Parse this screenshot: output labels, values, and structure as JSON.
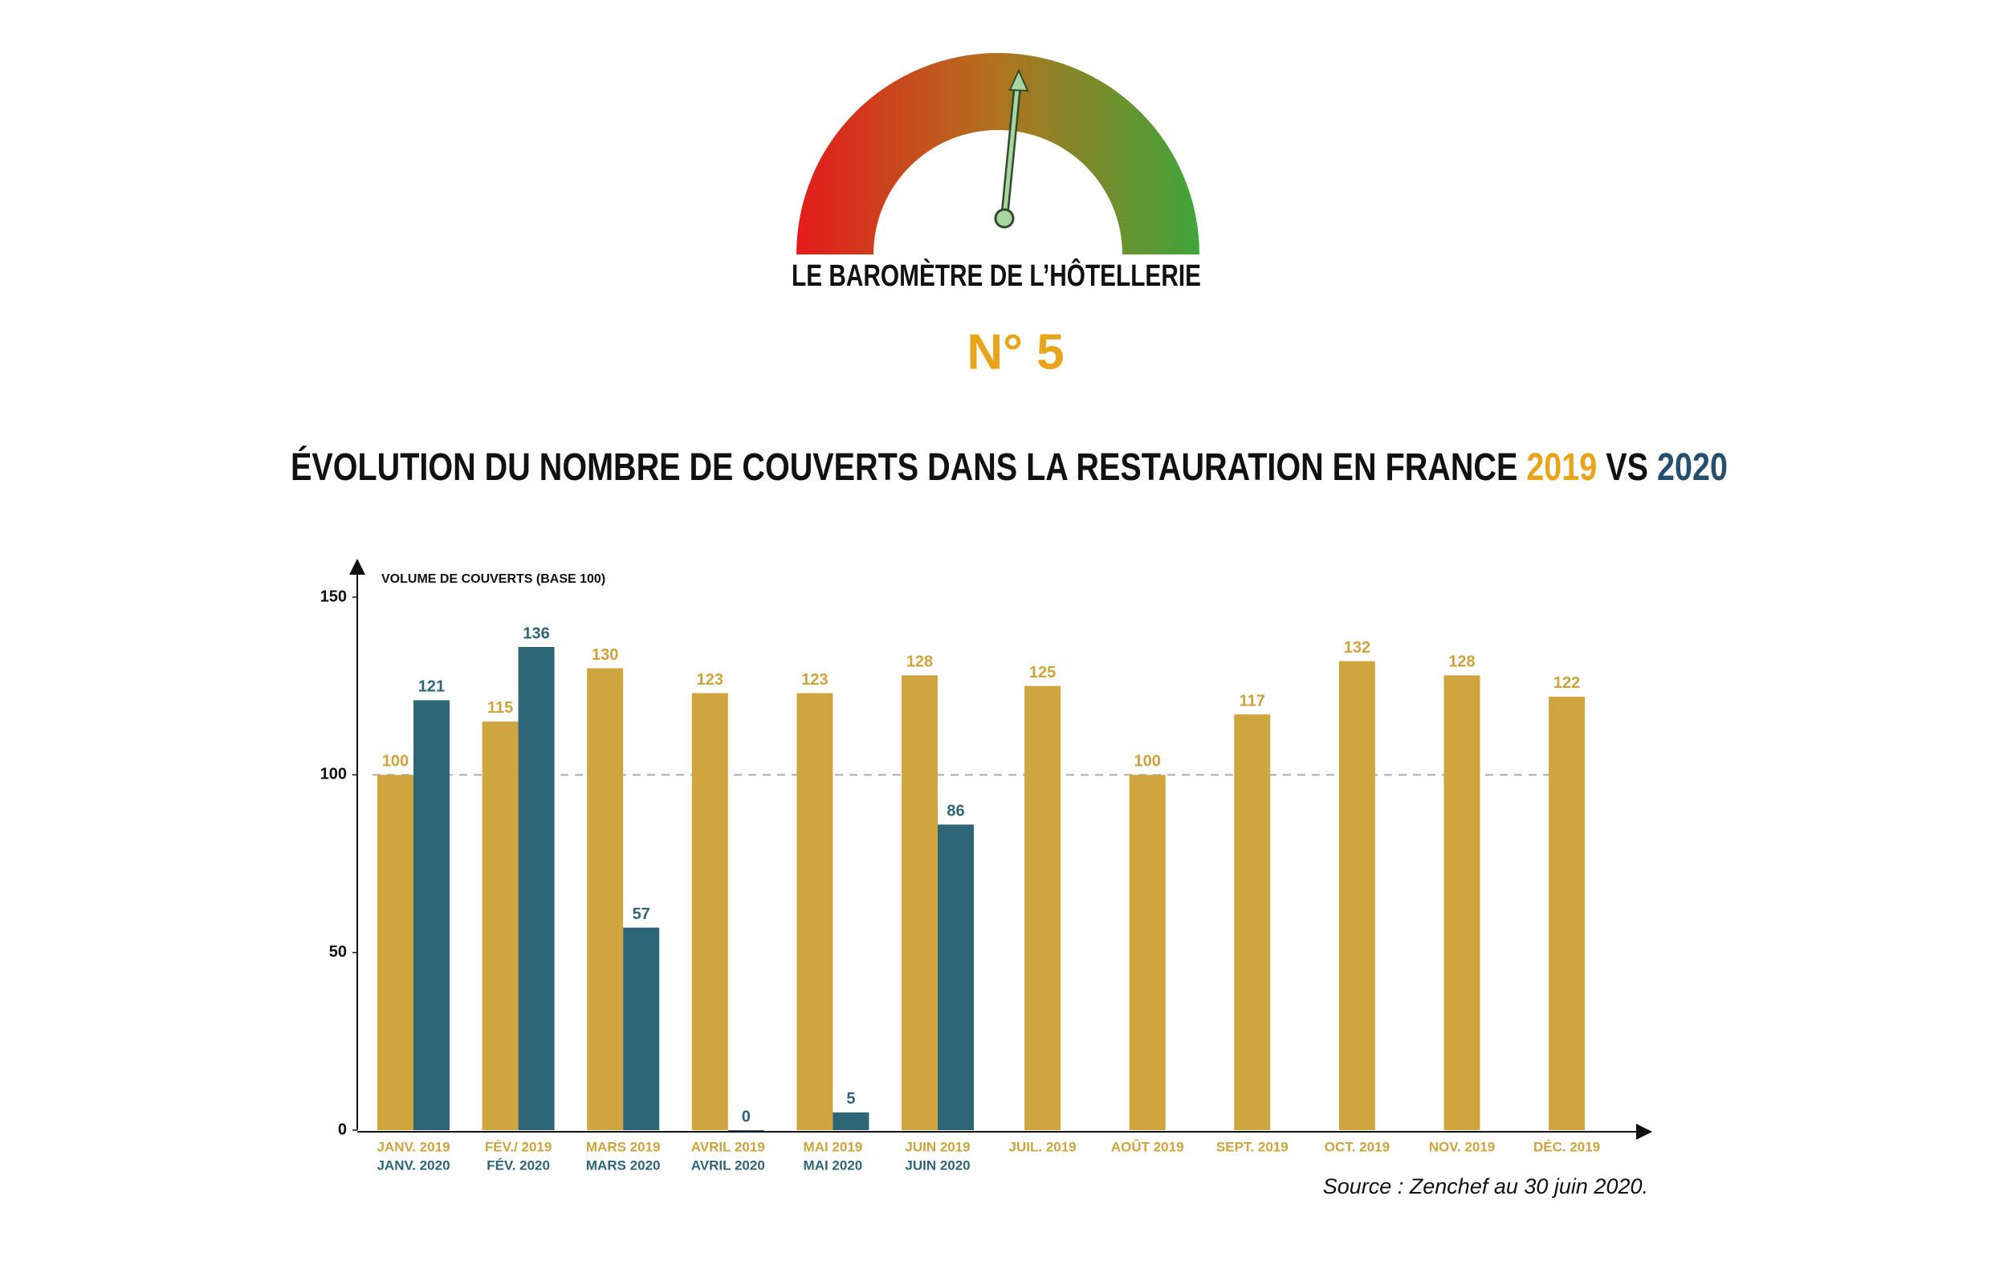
{
  "header": {
    "title": "LE BAROMÈTRE DE L’HÔTELLERIE",
    "issue": "N° 5"
  },
  "chart_data": {
    "type": "bar",
    "title": "ÉVOLUTION DU NOMBRE DE COUVERTS DANS LA RESTAURATION EN FRANCE",
    "title_join": "VS",
    "y_label": "VOLUME DE COUVERTS (BASE 100)",
    "source": "Source : Zenchef au 30 juin 2020.",
    "ylim": [
      0,
      150
    ],
    "yticks": [
      0,
      50,
      100,
      150
    ],
    "reference_line": 100,
    "series": [
      {
        "name": "2019",
        "color": "#cfa540",
        "label_color": "#cda33c",
        "title_color": "#e8a51c",
        "labels": [
          "JANV. 2019",
          "FÉV./ 2019",
          "MARS 2019",
          "AVRIL 2019",
          "MAI 2019",
          "JUIN 2019",
          "JUIL. 2019",
          "AOÛT 2019",
          "SEPT. 2019",
          "OCT. 2019",
          "NOV. 2019",
          "DÉC. 2019"
        ],
        "values": [
          100,
          115,
          130,
          123,
          123,
          128,
          125,
          100,
          117,
          132,
          128,
          122
        ]
      },
      {
        "name": "2020",
        "color": "#2e6678",
        "label_color": "#2e6678",
        "title_color": "#264e6e",
        "labels": [
          "JANV. 2020",
          "FÉV. 2020",
          "MARS 2020",
          "AVRIL 2020",
          "MAI 2020",
          "JUIN 2020",
          null,
          null,
          null,
          null,
          null,
          null
        ],
        "values": [
          121,
          136,
          57,
          0,
          5,
          86,
          null,
          null,
          null,
          null,
          null,
          null
        ]
      }
    ]
  }
}
